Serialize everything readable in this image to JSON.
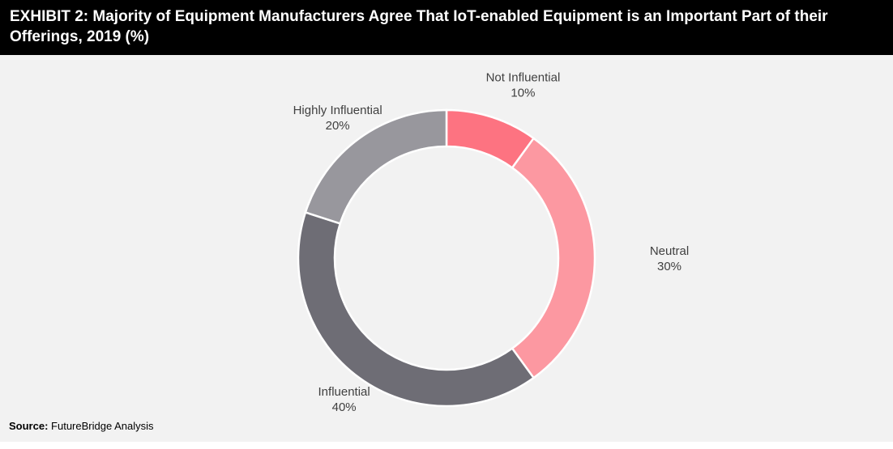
{
  "header": {
    "title": "EXHIBIT 2: Majority of Equipment Manufacturers Agree That IoT-enabled Equipment is an Important Part of their Offerings, 2019 (%)"
  },
  "source": {
    "label": "Source:",
    "text": "FutureBridge Analysis"
  },
  "chart_data": {
    "type": "pie",
    "subtype": "donut",
    "title": "EXHIBIT 2: Majority of Equipment Manufacturers Agree That IoT-enabled Equipment is an Important Part of their Offerings, 2019 (%)",
    "unit": "%",
    "slices": [
      {
        "label": "Not Influential",
        "value": 10,
        "display": "10%",
        "color": "#fd7381"
      },
      {
        "label": "Neutral",
        "value": 30,
        "display": "30%",
        "color": "#fc98a1"
      },
      {
        "label": "Influential",
        "value": 40,
        "display": "40%",
        "color": "#6e6d75"
      },
      {
        "label": "Highly Influential",
        "value": 20,
        "display": "20%",
        "color": "#98979d"
      }
    ],
    "start_angle_deg": 0,
    "direction": "clockwise",
    "legend": "none"
  }
}
